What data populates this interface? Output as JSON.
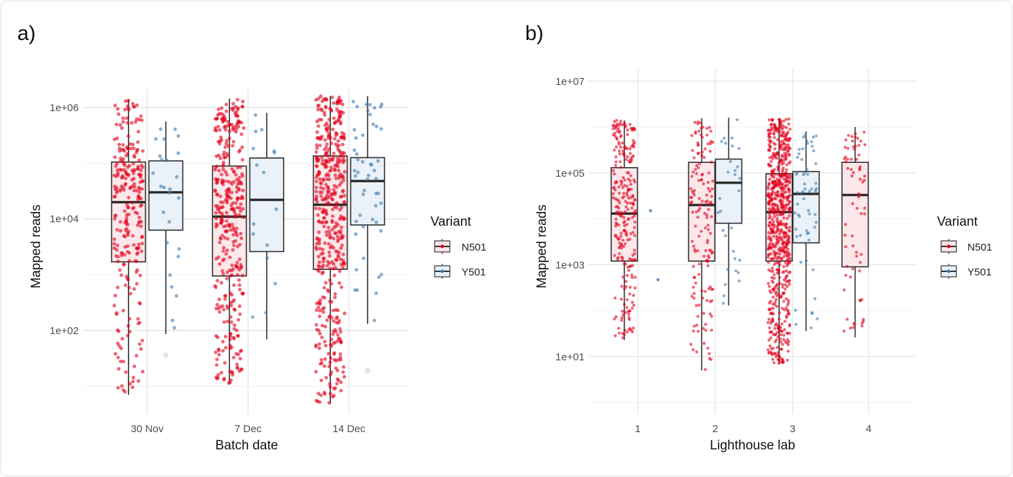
{
  "chart_data": [
    {
      "panel_label": "a)",
      "type": "box",
      "xlabel": "Batch date",
      "ylabel": "Mapped reads",
      "y_scale": "log10",
      "ylim": [
        3,
        3000000
      ],
      "yticks": [
        {
          "value": 100,
          "label": "1e+02"
        },
        {
          "value": 10000,
          "label": "1e+04"
        },
        {
          "value": 1000000,
          "label": "1e+06"
        }
      ],
      "categories": [
        "30 Nov",
        "7 Dec",
        "14 Dec"
      ],
      "grid": true,
      "legend": {
        "title": "Variant",
        "position": "right",
        "entries": [
          "N501",
          "Y501"
        ]
      },
      "series": [
        {
          "name": "N501",
          "point_color": "#E3001B",
          "fill_color": "#FCE4E6",
          "boxes": [
            {
              "category": "30 Nov",
              "min": 7,
              "q1": 1700,
              "median": 20000,
              "q3": 105000,
              "max": 1400000
            },
            {
              "category": "7 Dec",
              "min": 11,
              "q1": 950,
              "median": 11000,
              "q3": 89000,
              "max": 1450000
            },
            {
              "category": "14 Dec",
              "min": 5,
              "q1": 1250,
              "median": 18000,
              "q3": 135000,
              "max": 1600000
            }
          ]
        },
        {
          "name": "Y501",
          "point_color": "#3E7CB1",
          "fill_color": "#E6EFF7",
          "boxes": [
            {
              "category": "30 Nov",
              "min": 87,
              "q1": 6300,
              "median": 30000,
              "q3": 110000,
              "max": 560000,
              "outliers": [
                36
              ]
            },
            {
              "category": "7 Dec",
              "min": 69,
              "q1": 2600,
              "median": 22000,
              "q3": 124000,
              "max": 800000
            },
            {
              "category": "14 Dec",
              "min": 132,
              "q1": 7800,
              "median": 48000,
              "q3": 126000,
              "max": 1600000,
              "outliers": [
                19
              ]
            }
          ]
        }
      ]
    },
    {
      "panel_label": "b)",
      "type": "box",
      "xlabel": "Lighthouse lab",
      "ylabel": "Mapped reads",
      "y_scale": "log10",
      "ylim": [
        0.5,
        12000000
      ],
      "yticks": [
        {
          "value": 10,
          "label": "1e+01"
        },
        {
          "value": 1000,
          "label": "1e+03"
        },
        {
          "value": 100000,
          "label": "1e+05"
        },
        {
          "value": 10000000,
          "label": "1e+07"
        }
      ],
      "categories": [
        "1",
        "2",
        "3",
        "4"
      ],
      "grid": true,
      "legend": {
        "title": "Variant",
        "position": "right",
        "entries": [
          "N501",
          "Y501"
        ]
      },
      "series": [
        {
          "name": "N501",
          "point_color": "#E3001B",
          "fill_color": "#FCE4E6",
          "boxes": [
            {
              "category": "1",
              "min": 23,
              "q1": 1200,
              "median": 13000,
              "q3": 130000,
              "max": 1400000
            },
            {
              "category": "2",
              "min": 5,
              "q1": 1200,
              "median": 20000,
              "q3": 170000,
              "max": 1550000
            },
            {
              "category": "3",
              "min": 7,
              "q1": 1200,
              "median": 14000,
              "q3": 96000,
              "max": 1500000
            },
            {
              "category": "4",
              "min": 26,
              "q1": 900,
              "median": 33000,
              "q3": 170000,
              "max": 1000000
            }
          ]
        },
        {
          "name": "Y501",
          "point_color": "#3E7CB1",
          "fill_color": "#E6EFF7",
          "boxes": [
            {
              "category": "1",
              "points_only": [
                15000,
                470
              ]
            },
            {
              "category": "2",
              "min": 130,
              "q1": 8000,
              "median": 61000,
              "q3": 200000,
              "max": 1600000
            },
            {
              "category": "3",
              "min": 36,
              "q1": 3000,
              "median": 35000,
              "q3": 107000,
              "max": 800000
            }
          ]
        }
      ]
    }
  ]
}
